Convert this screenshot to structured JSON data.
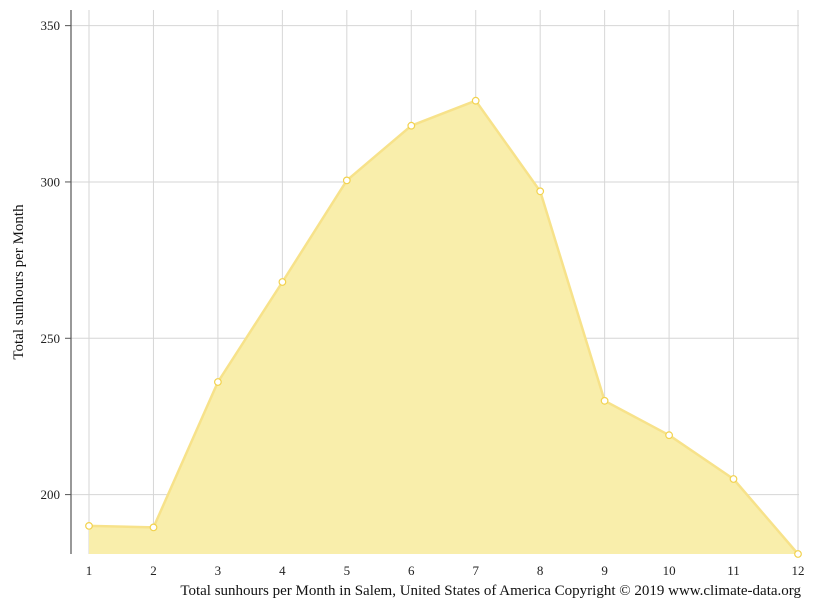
{
  "chart_data": {
    "type": "area",
    "x": [
      1,
      2,
      3,
      4,
      5,
      6,
      7,
      8,
      9,
      10,
      11,
      12
    ],
    "x_tick_labels": [
      "1",
      "2",
      "3",
      "4",
      "5",
      "6",
      "7",
      "8",
      "9",
      "10",
      "11",
      "12"
    ],
    "series": [
      {
        "values": [
          190,
          189.5,
          236,
          268,
          300.5,
          318,
          326,
          297,
          230,
          219,
          205,
          181
        ]
      }
    ],
    "ylabel": "Total sunhours per Month",
    "xlabel": "",
    "ylim": [
      181,
      355
    ],
    "xlim": [
      1,
      12
    ],
    "y_ticks": [
      200,
      250,
      300,
      350
    ],
    "grid": true,
    "legend": "none",
    "colors": {
      "area_fill": "#f9eeab",
      "area_line": "#f7e28a",
      "marker_stroke": "#f2d24e",
      "marker_fill": "#ffffff",
      "grid": "#d6d6d6",
      "axis": "#555555"
    }
  },
  "caption": "Total sunhours per Month in Salem, United States of America Copyright © 2019 www.climate-data.org"
}
